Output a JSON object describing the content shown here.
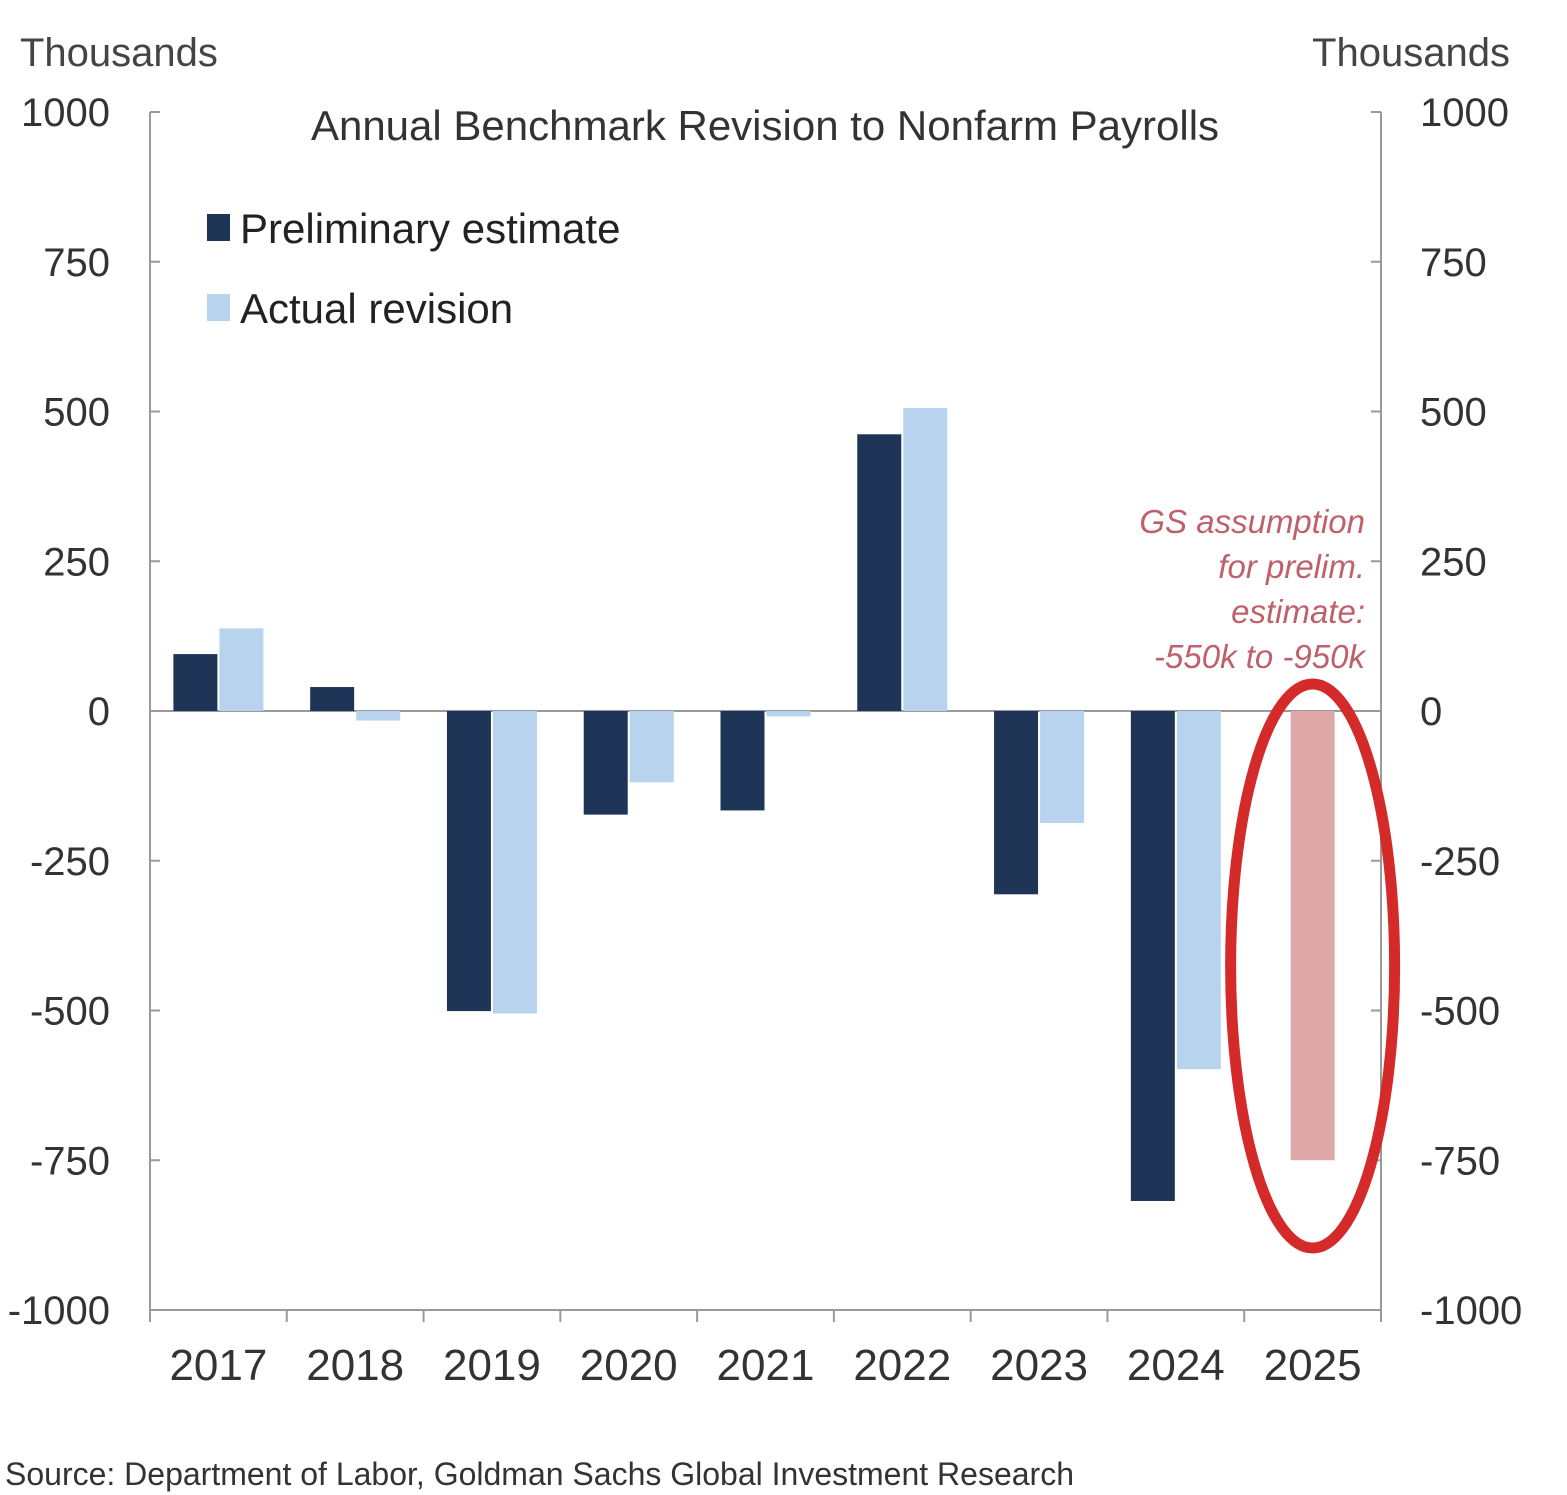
{
  "chart_data": {
    "type": "bar",
    "title": "Annual Benchmark Revision  to Nonfarm  Payrolls",
    "left_unit": "Thousands",
    "right_unit": "Thousands",
    "ylim": [
      -1000,
      1000
    ],
    "yticks": [
      1000,
      750,
      500,
      250,
      0,
      -250,
      -500,
      -750,
      -1000
    ],
    "categories": [
      "2017",
      "2018",
      "2019",
      "2020",
      "2021",
      "2022",
      "2023",
      "2024",
      "2025"
    ],
    "series": [
      {
        "name": "Preliminary estimate",
        "color": "#1f3558",
        "values": [
          95,
          40,
          -501,
          -173,
          -166,
          462,
          -306,
          -818,
          null
        ]
      },
      {
        "name": "Actual revision",
        "color": "#b8d3ee",
        "values": [
          138,
          -16,
          -505,
          -119,
          -9,
          506,
          -187,
          -598,
          null
        ]
      }
    ],
    "assumption": {
      "category": "2025",
      "value": -750,
      "color": "#dea8a8"
    },
    "annotation": {
      "lines": [
        "GS assumption",
        "for prelim.",
        "estimate:",
        "-550k to -950k"
      ],
      "color": "#c0606a"
    },
    "highlight_color": "#d42a2a",
    "legend_position": "top-left",
    "grid": false,
    "source": "Source: Department of Labor, Goldman Sachs Global Investment Research"
  }
}
